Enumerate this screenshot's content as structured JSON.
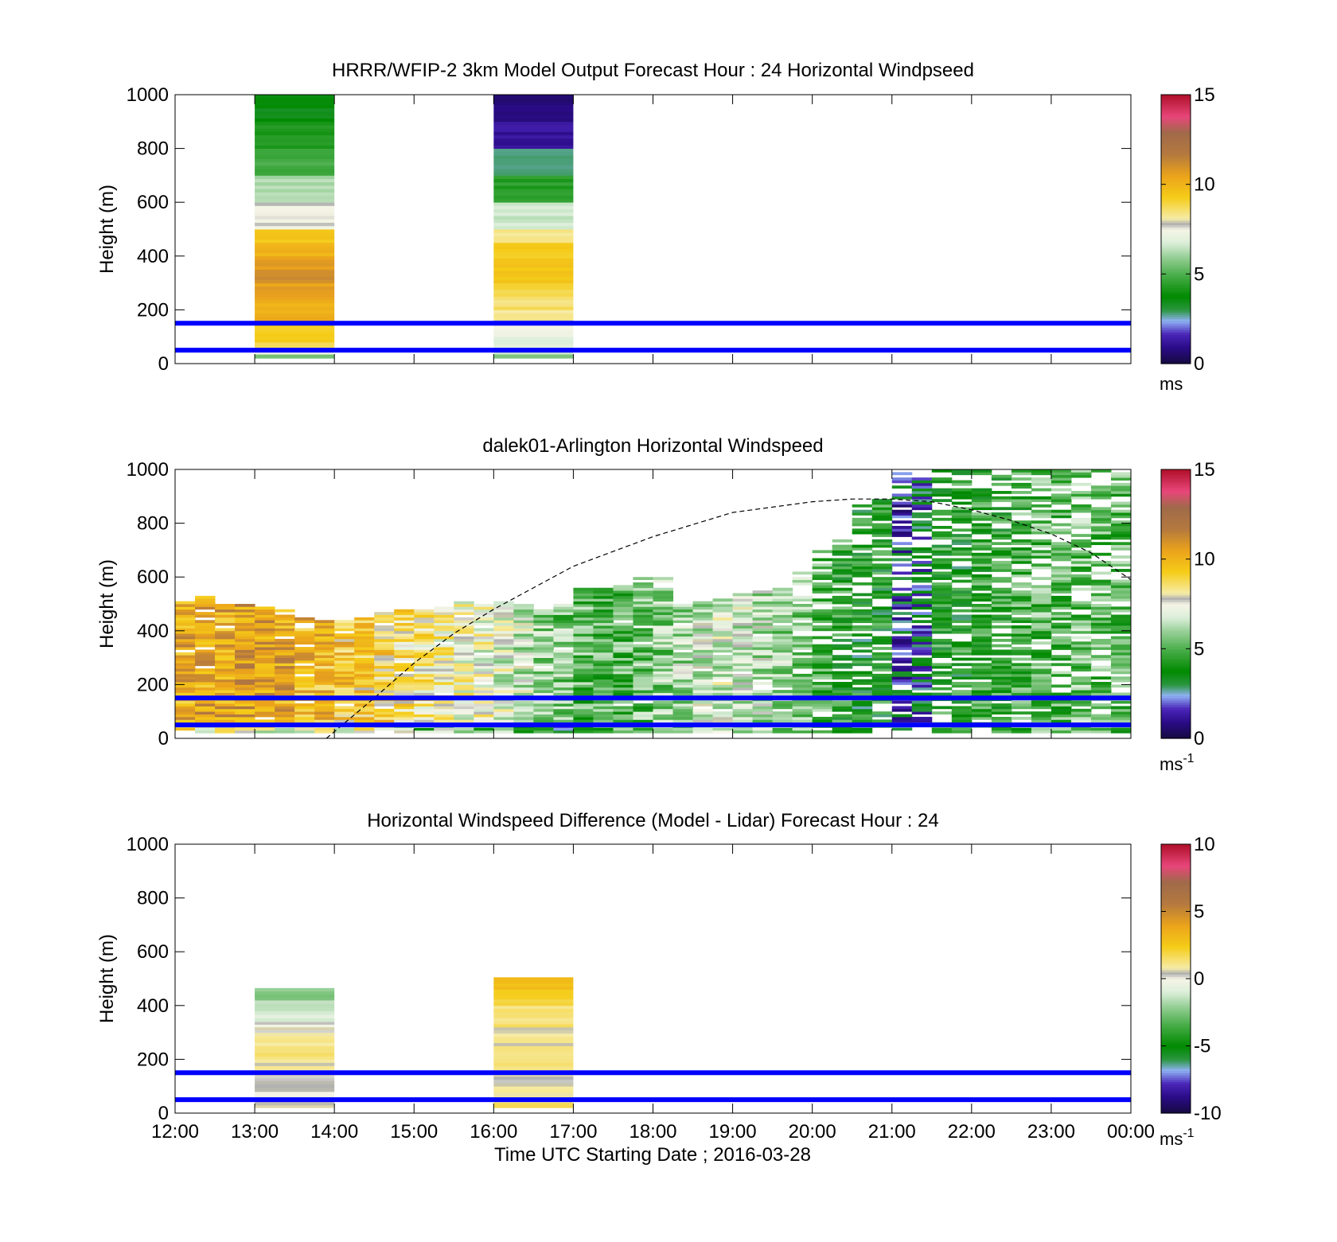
{
  "figure": {
    "xlabel": "Time UTC  Starting Date ; 2016-03-28",
    "xticks": [
      "12:00",
      "13:00",
      "14:00",
      "15:00",
      "16:00",
      "17:00",
      "18:00",
      "19:00",
      "20:00",
      "21:00",
      "22:00",
      "23:00",
      "00:00"
    ]
  },
  "chart_data": [
    {
      "type": "heatmap",
      "title": "HRRR/WFIP-2 3km Model Output   Forecast Hour : 24 Horizontal Windpseed",
      "ylabel": "Height (m)",
      "ylim": [
        0,
        1000
      ],
      "yticks": [
        "0",
        "200",
        "400",
        "600",
        "800",
        "1000"
      ],
      "colorbar": {
        "ticks": [
          "0",
          "5",
          "10",
          "15"
        ],
        "range": [
          0,
          15
        ],
        "unit": "ms",
        "unit_exp": ""
      },
      "reference_heights_m": [
        50,
        150
      ],
      "reference_color": "#0000ff",
      "columns": [
        {
          "hour_start": 1,
          "hour_end": 2,
          "cells": [
            {
              "z0": 20,
              "z1": 35,
              "v": 5.8
            },
            {
              "z0": 35,
              "z1": 60,
              "v": 7.5
            },
            {
              "z0": 60,
              "z1": 80,
              "v": 8.6
            },
            {
              "z0": 80,
              "z1": 150,
              "v": 9.2
            },
            {
              "z0": 150,
              "z1": 250,
              "v": 10.2
            },
            {
              "z0": 250,
              "z1": 300,
              "v": 10.6
            },
            {
              "z0": 300,
              "z1": 350,
              "v": 11.0
            },
            {
              "z0": 350,
              "z1": 400,
              "v": 10.6
            },
            {
              "z0": 400,
              "z1": 450,
              "v": 10.0
            },
            {
              "z0": 450,
              "z1": 500,
              "v": 9.4
            },
            {
              "z0": 500,
              "z1": 600,
              "v": 7.6
            },
            {
              "z0": 600,
              "z1": 700,
              "v": 6.2
            },
            {
              "z0": 700,
              "z1": 800,
              "v": 4.8
            },
            {
              "z0": 800,
              "z1": 900,
              "v": 4.2
            },
            {
              "z0": 900,
              "z1": 1000,
              "v": 3.6
            }
          ]
        },
        {
          "hour_start": 4,
          "hour_end": 5,
          "cells": [
            {
              "z0": 20,
              "z1": 35,
              "v": 5.8
            },
            {
              "z0": 35,
              "z1": 60,
              "v": 6.6
            },
            {
              "z0": 60,
              "z1": 100,
              "v": 7.0
            },
            {
              "z0": 100,
              "z1": 150,
              "v": 7.4
            },
            {
              "z0": 150,
              "z1": 200,
              "v": 8.1
            },
            {
              "z0": 200,
              "z1": 250,
              "v": 8.6
            },
            {
              "z0": 250,
              "z1": 300,
              "v": 9.0
            },
            {
              "z0": 300,
              "z1": 450,
              "v": 9.4
            },
            {
              "z0": 450,
              "z1": 500,
              "v": 8.4
            },
            {
              "z0": 500,
              "z1": 600,
              "v": 6.6
            },
            {
              "z0": 600,
              "z1": 700,
              "v": 4.4
            },
            {
              "z0": 700,
              "z1": 800,
              "v": 2.7
            },
            {
              "z0": 800,
              "z1": 900,
              "v": 1.2
            },
            {
              "z0": 900,
              "z1": 1000,
              "v": 0.7
            }
          ]
        }
      ]
    },
    {
      "type": "heatmap",
      "title": "dalek01-Arlington  Horizontal Windspeed",
      "ylabel": "Height (m)",
      "ylim": [
        0,
        1000
      ],
      "yticks": [
        "0",
        "200",
        "400",
        "600",
        "800",
        "1000"
      ],
      "colorbar": {
        "ticks": [
          "0",
          "5",
          "10",
          "15"
        ],
        "range": [
          0,
          15
        ],
        "unit": "ms",
        "unit_exp": "-1"
      },
      "reference_heights_m": [
        50,
        150
      ],
      "reference_color": "#0000ff",
      "curve": {
        "style": "dashed",
        "color": "#000000",
        "points_hour_height": [
          [
            1.9,
            0
          ],
          [
            2.5,
            150
          ],
          [
            3,
            280
          ],
          [
            3.5,
            390
          ],
          [
            4,
            480
          ],
          [
            5,
            640
          ],
          [
            6,
            750
          ],
          [
            7,
            840
          ],
          [
            8,
            880
          ],
          [
            8.5,
            890
          ],
          [
            9,
            890
          ],
          [
            9.5,
            880
          ],
          [
            10,
            850
          ],
          [
            10.5,
            810
          ],
          [
            11,
            760
          ],
          [
            11.5,
            690
          ],
          [
            12,
            590
          ]
        ]
      },
      "columns_hour": [
        0.0,
        0.25,
        0.5,
        0.75,
        1.0,
        1.25,
        1.5,
        1.75,
        2.0,
        2.25,
        2.5,
        2.75,
        3.0,
        3.25,
        3.5,
        3.75,
        4.0,
        4.25,
        4.5,
        4.75,
        5.0,
        5.25,
        5.5,
        5.75,
        6.0,
        6.25,
        6.5,
        6.75,
        7.0,
        7.25,
        7.5,
        7.75,
        8.0,
        8.25,
        8.5,
        8.75,
        9.0,
        9.25,
        9.5,
        9.75,
        10.0,
        10.25,
        10.5,
        10.75,
        11.0,
        11.25,
        11.5,
        11.75
      ],
      "column_top_m": [
        510,
        530,
        500,
        500,
        490,
        480,
        450,
        440,
        440,
        450,
        470,
        480,
        480,
        490,
        510,
        500,
        520,
        500,
        480,
        500,
        560,
        560,
        570,
        600,
        600,
        500,
        510,
        520,
        540,
        550,
        560,
        620,
        700,
        800,
        880,
        900,
        1000,
        1000,
        1000,
        1000,
        1000,
        1000,
        1000,
        1000,
        1000,
        1000,
        1000,
        1000
      ],
      "column_mean_ms": [
        10.2,
        10.4,
        10.3,
        10.6,
        10.5,
        10.4,
        10.0,
        9.8,
        9.4,
        9.2,
        9.0,
        8.6,
        8.2,
        7.8,
        7.6,
        7.4,
        7.0,
        6.6,
        6.0,
        5.6,
        5.2,
        5.0,
        5.1,
        5.4,
        5.8,
        6.2,
        6.6,
        6.8,
        6.6,
        6.4,
        6.0,
        5.6,
        5.0,
        4.4,
        4.0,
        4.2,
        2.0,
        2.6,
        4.4,
        4.2,
        4.6,
        4.4,
        4.8,
        5.2,
        5.0,
        5.4,
        5.2,
        5.0
      ]
    },
    {
      "type": "heatmap",
      "title": "Horizontal Windspeed Difference (Model - Lidar) Forecast Hour : 24",
      "ylabel": "Height (m)",
      "ylim": [
        0,
        1000
      ],
      "yticks": [
        "0",
        "200",
        "400",
        "600",
        "800",
        "1000"
      ],
      "colorbar": {
        "ticks": [
          "-10",
          "-5",
          "0",
          "5",
          "10"
        ],
        "range": [
          -10,
          10
        ],
        "unit": "ms",
        "unit_exp": "-1"
      },
      "reference_heights_m": [
        50,
        150
      ],
      "reference_color": "#0000ff",
      "columns": [
        {
          "hour_start": 1,
          "hour_end": 2,
          "cells": [
            {
              "z0": 20,
              "z1": 30,
              "v": 1.0
            },
            {
              "z0": 30,
              "z1": 60,
              "v": 0.6
            },
            {
              "z0": 60,
              "z1": 80,
              "v": -0.2
            },
            {
              "z0": 80,
              "z1": 120,
              "v": 0.3
            },
            {
              "z0": 120,
              "z1": 140,
              "v": 0.0
            },
            {
              "z0": 140,
              "z1": 200,
              "v": 0.8
            },
            {
              "z0": 200,
              "z1": 250,
              "v": 1.2
            },
            {
              "z0": 250,
              "z1": 300,
              "v": 0.9
            },
            {
              "z0": 300,
              "z1": 320,
              "v": 0.4
            },
            {
              "z0": 320,
              "z1": 340,
              "v": 0.0
            },
            {
              "z0": 340,
              "z1": 380,
              "v": -0.8
            },
            {
              "z0": 380,
              "z1": 420,
              "v": -1.6
            },
            {
              "z0": 420,
              "z1": 465,
              "v": -2.4
            }
          ]
        },
        {
          "hour_start": 4,
          "hour_end": 5,
          "cells": [
            {
              "z0": 20,
              "z1": 40,
              "v": 2.0
            },
            {
              "z0": 40,
              "z1": 100,
              "v": 0.9
            },
            {
              "z0": 100,
              "z1": 150,
              "v": 0.6
            },
            {
              "z0": 150,
              "z1": 250,
              "v": 1.3
            },
            {
              "z0": 250,
              "z1": 320,
              "v": 0.8
            },
            {
              "z0": 320,
              "z1": 400,
              "v": 1.4
            },
            {
              "z0": 400,
              "z1": 460,
              "v": 2.2
            },
            {
              "z0": 460,
              "z1": 505,
              "v": 2.8
            }
          ]
        }
      ]
    }
  ]
}
